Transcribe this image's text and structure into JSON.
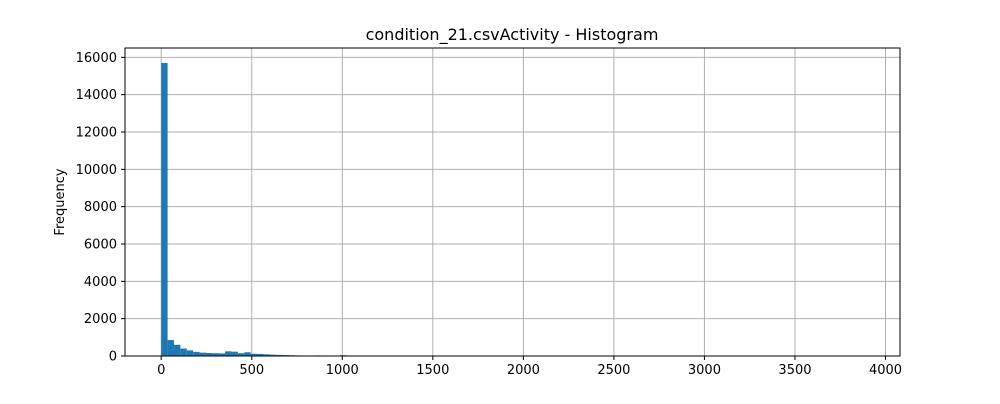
{
  "chart_data": {
    "type": "bar",
    "title": "condition_21.csvActivity - Histogram",
    "xlabel": "",
    "ylabel": "Frequency",
    "xlim": [
      -200,
      4080
    ],
    "ylim": [
      0,
      16500
    ],
    "xticks": [
      0,
      500,
      1000,
      1500,
      2000,
      2500,
      3000,
      3500,
      4000
    ],
    "yticks": [
      0,
      2000,
      4000,
      6000,
      8000,
      10000,
      12000,
      14000,
      16000
    ],
    "grid": true,
    "bar_color": "#1f77b4",
    "bin_edges_start": 0,
    "bin_width": 35.3,
    "values": [
      15700,
      850,
      600,
      400,
      300,
      220,
      180,
      160,
      150,
      140,
      250,
      230,
      150,
      200,
      120,
      110,
      90,
      70,
      60,
      50,
      40,
      30,
      20,
      25,
      30,
      25,
      20,
      15,
      40,
      20,
      15,
      10,
      8,
      6,
      5,
      5,
      4,
      3,
      3,
      2,
      2,
      2,
      1,
      1,
      1,
      1,
      1,
      1,
      1,
      1,
      1,
      1,
      1,
      1,
      1,
      1,
      1,
      1,
      1,
      1,
      1,
      1,
      1,
      1,
      1,
      1,
      1,
      1,
      1,
      1,
      1,
      1,
      1,
      1,
      1,
      1,
      1,
      1,
      1,
      1,
      1,
      1,
      1,
      1,
      1,
      1,
      1,
      1,
      1,
      1,
      1,
      1,
      1,
      1,
      1,
      1,
      1,
      1,
      1,
      1
    ]
  }
}
